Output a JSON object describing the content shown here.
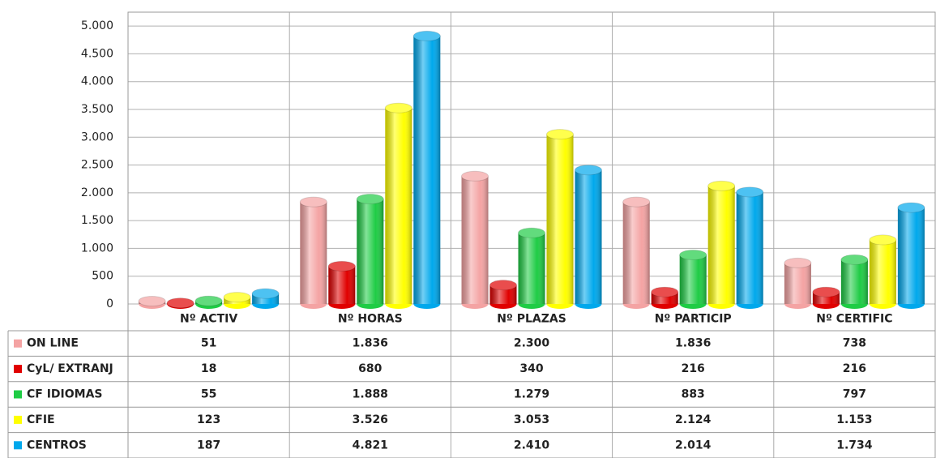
{
  "chart_data": {
    "type": "bar",
    "categories": [
      "Nº ACTIV",
      "Nº HORAS",
      "Nº PLAZAS",
      "Nº PARTICIP",
      "Nº CERTIFIC"
    ],
    "series": [
      {
        "name": "ON LINE",
        "color": "#f4a3a3",
        "values": [
          51,
          1836,
          2300,
          1836,
          738
        ],
        "value_labels": [
          "51",
          "1.836",
          "2.300",
          "1.836",
          "738"
        ]
      },
      {
        "name": "CyL/ EXTRANJ",
        "color": "#e00000",
        "values": [
          18,
          680,
          340,
          216,
          216
        ],
        "value_labels": [
          "18",
          "680",
          "340",
          "216",
          "216"
        ]
      },
      {
        "name": "CF IDIOMAS",
        "color": "#1fcc45",
        "values": [
          55,
          1888,
          1279,
          883,
          797
        ],
        "value_labels": [
          "55",
          "1.888",
          "1.279",
          "883",
          "797"
        ]
      },
      {
        "name": "CFIE",
        "color": "#ffff00",
        "values": [
          123,
          3526,
          3053,
          2124,
          1153
        ],
        "value_labels": [
          "123",
          "3.526",
          "3.053",
          "2.124",
          "1.153"
        ]
      },
      {
        "name": "CENTROS",
        "color": "#00a8ec",
        "values": [
          187,
          4821,
          2410,
          2014,
          1734
        ],
        "value_labels": [
          "187",
          "4.821",
          "2.410",
          "2.014",
          "1.734"
        ]
      }
    ],
    "ylim": [
      0,
      5250
    ],
    "yticks": [
      0,
      500,
      {
        "value": 1000,
        "label": "1.000"
      },
      {
        "value": 1500,
        "label": "1.500"
      },
      {
        "value": 2000,
        "label": "2.000"
      },
      {
        "value": 2500,
        "label": "2.500"
      },
      {
        "value": 3000,
        "label": "3.000"
      },
      {
        "value": 3500,
        "label": "3.500"
      },
      {
        "value": 4000,
        "label": "4.000"
      },
      {
        "value": 4500,
        "label": "4.500"
      },
      {
        "value": 5000,
        "label": "5.000"
      }
    ],
    "grid": true
  }
}
